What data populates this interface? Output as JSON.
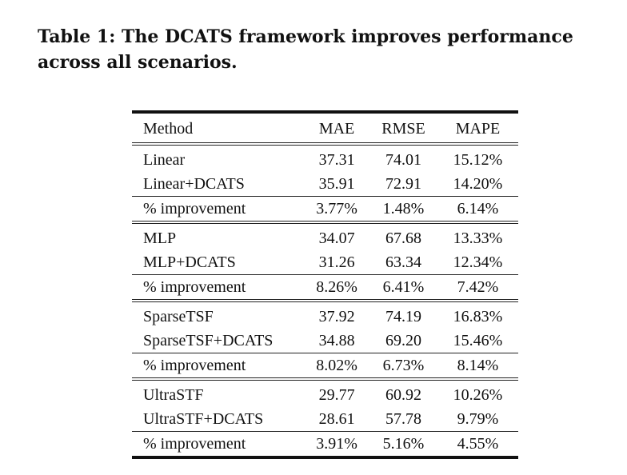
{
  "caption": {
    "line1": "Table 1: The DCATS framework improves performance",
    "line2": "across all scenarios."
  },
  "table": {
    "headers": [
      "Method",
      "MAE",
      "RMSE",
      "MAPE"
    ],
    "groups": [
      {
        "rows": [
          [
            "Linear",
            "37.31",
            "74.01",
            "15.12%"
          ],
          [
            "Linear+DCATS",
            "35.91",
            "72.91",
            "14.20%"
          ]
        ],
        "improvement": [
          "% improvement",
          "3.77%",
          "1.48%",
          "6.14%"
        ]
      },
      {
        "rows": [
          [
            "MLP",
            "34.07",
            "67.68",
            "13.33%"
          ],
          [
            "MLP+DCATS",
            "31.26",
            "63.34",
            "12.34%"
          ]
        ],
        "improvement": [
          "% improvement",
          "8.26%",
          "6.41%",
          "7.42%"
        ]
      },
      {
        "rows": [
          [
            "SparseTSF",
            "37.92",
            "74.19",
            "16.83%"
          ],
          [
            "SparseTSF+DCATS",
            "34.88",
            "69.20",
            "15.46%"
          ]
        ],
        "improvement": [
          "% improvement",
          "8.02%",
          "6.73%",
          "8.14%"
        ]
      },
      {
        "rows": [
          [
            "UltraSTF",
            "29.77",
            "60.92",
            "10.26%"
          ],
          [
            "UltraSTF+DCATS",
            "28.61",
            "57.78",
            "9.79%"
          ]
        ],
        "improvement": [
          "% improvement",
          "3.91%",
          "5.16%",
          "4.55%"
        ]
      }
    ]
  }
}
